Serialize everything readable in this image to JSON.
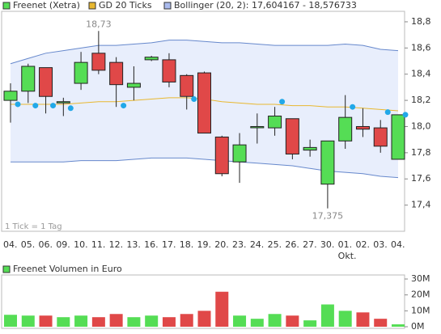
{
  "chart_data": {
    "type": "candlestick",
    "legend": [
      "Freenet (Xetra)",
      "GD 20 Ticks",
      "Bollinger (20, 2): 17,604167 - 18,576733"
    ],
    "note": "1 Tick = 1 Tag",
    "month_label": "Okt.",
    "categories": [
      "04.",
      "05.",
      "06.",
      "09.",
      "10.",
      "11.",
      "12.",
      "13.",
      "16.",
      "17.",
      "18.",
      "19.",
      "20.",
      "23.",
      "24.",
      "25.",
      "26.",
      "27.",
      "30.",
      "01.",
      "02.",
      "03.",
      "04."
    ],
    "open": [
      18.2,
      18.27,
      18.45,
      18.19,
      18.33,
      18.56,
      18.49,
      18.3,
      18.51,
      18.51,
      18.39,
      18.41,
      17.92,
      17.73,
      18.0,
      17.99,
      18.06,
      17.82,
      17.56,
      17.89,
      18.0,
      17.99,
      17.75
    ],
    "high": [
      18.33,
      18.48,
      18.45,
      18.22,
      18.57,
      18.73,
      18.53,
      18.46,
      18.54,
      18.56,
      18.4,
      18.42,
      17.93,
      17.95,
      18.1,
      18.15,
      18.06,
      17.9,
      17.89,
      18.24,
      18.14,
      18.05,
      18.09
    ],
    "low": [
      18.03,
      18.18,
      18.1,
      18.08,
      18.28,
      18.4,
      18.15,
      18.2,
      18.5,
      18.3,
      18.13,
      17.95,
      17.62,
      17.57,
      17.87,
      17.93,
      17.75,
      17.77,
      17.375,
      17.83,
      17.92,
      17.8,
      17.75
    ],
    "close": [
      18.27,
      18.46,
      18.23,
      18.19,
      18.49,
      18.43,
      18.32,
      18.33,
      18.53,
      18.34,
      18.23,
      17.95,
      17.64,
      17.86,
      18.0,
      18.08,
      17.79,
      17.84,
      17.89,
      18.07,
      17.98,
      17.85,
      18.09
    ],
    "annotations": {
      "max_label": "18,73",
      "min_label": "17,375"
    },
    "up_color": "#55dd55",
    "down_color": "#e04848",
    "gd20": {
      "color": "#e8b830",
      "values": [
        18.17,
        18.17,
        18.17,
        18.17,
        18.18,
        18.19,
        18.19,
        18.2,
        18.21,
        18.22,
        18.22,
        18.21,
        18.19,
        18.18,
        18.17,
        18.17,
        18.16,
        18.16,
        18.15,
        18.15,
        18.14,
        18.13,
        18.12
      ]
    },
    "bollinger": {
      "color": "#6688cc",
      "fill": "#e8eefc",
      "upper": [
        18.48,
        18.52,
        18.56,
        18.58,
        18.6,
        18.62,
        18.62,
        18.63,
        18.64,
        18.66,
        18.66,
        18.65,
        18.64,
        18.64,
        18.63,
        18.62,
        18.62,
        18.62,
        18.62,
        18.63,
        18.62,
        18.59,
        18.58
      ],
      "lower": [
        17.73,
        17.73,
        17.73,
        17.73,
        17.74,
        17.74,
        17.74,
        17.75,
        17.76,
        17.76,
        17.76,
        17.75,
        17.74,
        17.73,
        17.72,
        17.71,
        17.7,
        17.68,
        17.66,
        17.65,
        17.64,
        17.62,
        17.61
      ]
    },
    "dots": {
      "color": "#22a8e8",
      "values": [
        18.17,
        18.16,
        18.16,
        18.14,
        null,
        null,
        18.16,
        null,
        null,
        null,
        18.21,
        null,
        null,
        null,
        null,
        18.19,
        null,
        null,
        null,
        18.15,
        null,
        18.11,
        18.09
      ]
    },
    "ylim": [
      17.2,
      18.88
    ],
    "yticks": [
      {
        "value": 17.4,
        "label": "17,4"
      },
      {
        "value": 17.6,
        "label": "17,6"
      },
      {
        "value": 17.8,
        "label": "17,8"
      },
      {
        "value": 18.0,
        "label": "18,0"
      },
      {
        "value": 18.2,
        "label": "18,2"
      },
      {
        "value": 18.4,
        "label": "18,4"
      },
      {
        "value": 18.6,
        "label": "18,6"
      },
      {
        "value": 18.8,
        "label": "18,8"
      }
    ],
    "volume": {
      "title": "Freenet Volumen in Euro",
      "values": [
        7.5,
        7,
        7,
        6,
        7,
        6,
        8,
        6,
        7,
        6,
        8,
        10,
        22,
        7,
        5,
        8,
        7,
        4,
        14,
        10,
        9,
        5,
        1.5
      ],
      "ylim": [
        0,
        30
      ],
      "yticks": [
        {
          "value": 0,
          "label": "0M"
        },
        {
          "value": 10,
          "label": "10M"
        },
        {
          "value": 20,
          "label": "20M"
        },
        {
          "value": 30,
          "label": "30M"
        }
      ]
    }
  }
}
